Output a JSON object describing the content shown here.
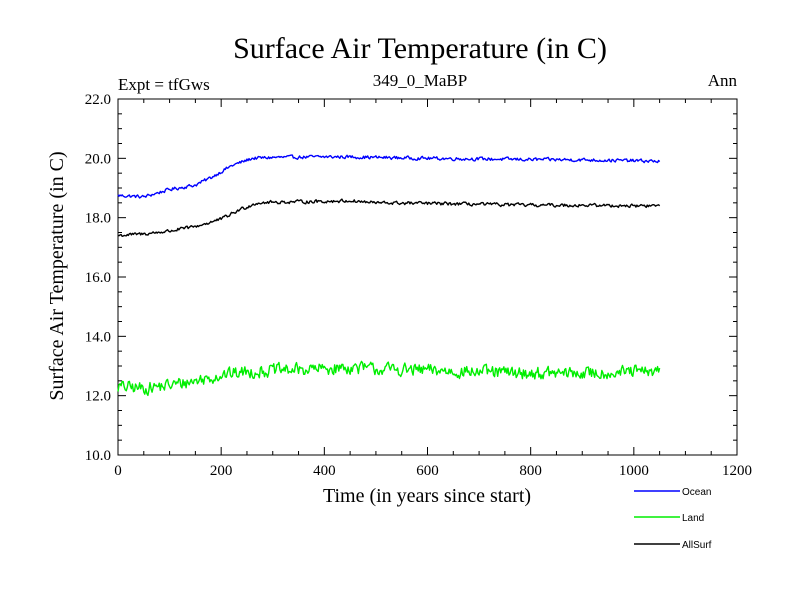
{
  "chart_data": {
    "type": "line",
    "title": "Surface Air Temperature (in C)",
    "subtitle": "349_0_MaBP",
    "experiment_label": "Expt = tfGws",
    "season_label": "Ann",
    "xlabel": "Time (in years since start)",
    "ylabel": "Surface Air Temperature (in C)",
    "xlim": [
      0,
      1200
    ],
    "ylim": [
      10.0,
      22.0
    ],
    "x_ticks": [
      0,
      200,
      400,
      600,
      800,
      1000,
      1200
    ],
    "x_tick_labels": [
      "0",
      "200",
      "400",
      "600",
      "800",
      "1000",
      "1200"
    ],
    "y_ticks": [
      10,
      12,
      14,
      16,
      18,
      20,
      22
    ],
    "y_tick_labels": [
      "10.0",
      "12.0",
      "14.0",
      "16.0",
      "18.0",
      "20.0",
      "22.0"
    ],
    "grid": false,
    "legend_position": "bottom-right",
    "x_range_data": [
      0,
      1050
    ],
    "series": [
      {
        "name": "Ocean",
        "color": "#0000ff",
        "noise_amplitude": 0.08,
        "keyframes_x": [
          0,
          50,
          100,
          150,
          180,
          220,
          260,
          300,
          400,
          450,
          500,
          600,
          700,
          800,
          900,
          1000,
          1050
        ],
        "keyframes_y": [
          18.75,
          18.7,
          18.95,
          19.1,
          19.35,
          19.75,
          20.0,
          20.03,
          20.05,
          20.05,
          20.03,
          20.0,
          19.98,
          19.96,
          19.95,
          19.92,
          19.9
        ]
      },
      {
        "name": "Land",
        "color": "#00ee00",
        "noise_amplitude": 0.3,
        "keyframes_x": [
          0,
          50,
          100,
          150,
          200,
          250,
          300,
          400,
          450,
          500,
          600,
          700,
          800,
          900,
          1000,
          1050
        ],
        "keyframes_y": [
          12.3,
          12.25,
          12.35,
          12.5,
          12.7,
          12.8,
          12.85,
          12.9,
          12.95,
          12.9,
          12.85,
          12.8,
          12.75,
          12.75,
          12.8,
          12.8
        ]
      },
      {
        "name": "AllSurf",
        "color": "#000000",
        "noise_amplitude": 0.08,
        "keyframes_x": [
          0,
          50,
          100,
          150,
          200,
          240,
          270,
          300,
          400,
          450,
          500,
          600,
          700,
          800,
          900,
          1000,
          1050
        ],
        "keyframes_y": [
          17.4,
          17.45,
          17.55,
          17.7,
          17.95,
          18.3,
          18.5,
          18.52,
          18.55,
          18.57,
          18.5,
          18.48,
          18.45,
          18.42,
          18.42,
          18.4,
          18.4
        ]
      }
    ]
  }
}
